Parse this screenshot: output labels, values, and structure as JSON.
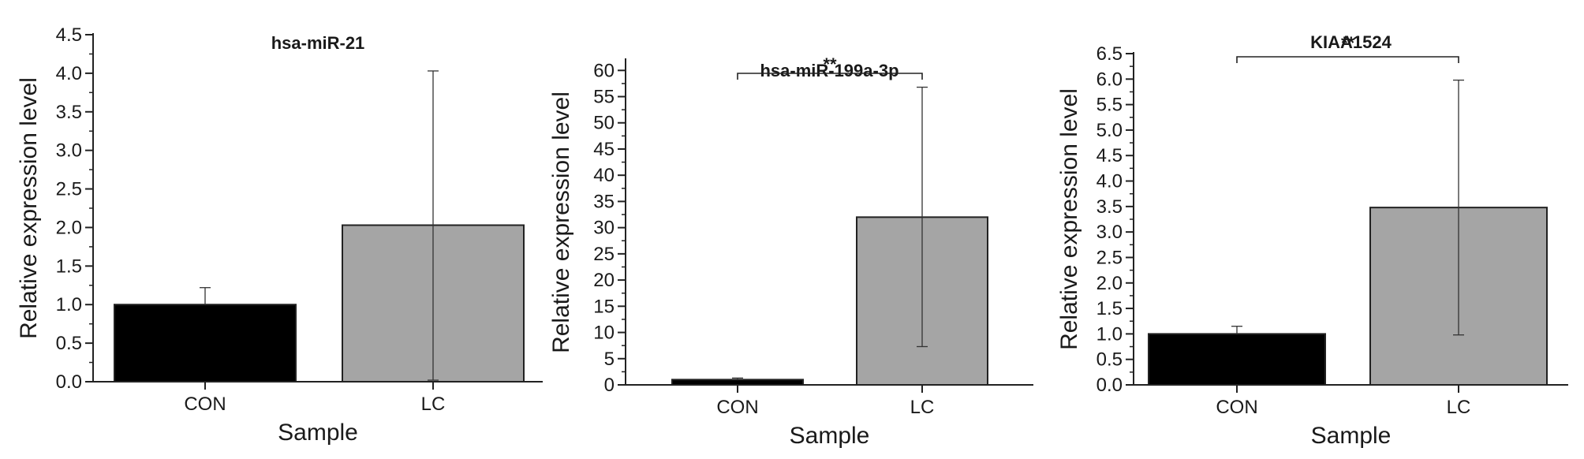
{
  "chart_data": [
    {
      "type": "bar",
      "title": "hsa-miR-21",
      "xlabel": "Sample",
      "ylabel": "Relative expression level",
      "categories": [
        "CON",
        "LC"
      ],
      "values": [
        1.0,
        2.03
      ],
      "error_upper": [
        1.22,
        4.03
      ],
      "error_lower": [
        1.0,
        0.02
      ],
      "bar_colors": [
        "#000000",
        "#a5a5a5"
      ],
      "ylim": [
        0,
        4.5
      ],
      "yticks": [
        "0.0",
        "0.5",
        "1.0",
        "1.5",
        "2.0",
        "2.5",
        "3.0",
        "3.5",
        "4.0",
        "4.5"
      ],
      "significance": null
    },
    {
      "type": "bar",
      "title": "hsa-miR-199a-3p",
      "xlabel": "Sample",
      "ylabel": "Relative expression level",
      "categories": [
        "CON",
        "LC"
      ],
      "values": [
        1.0,
        32.0
      ],
      "error_upper": [
        1.3,
        56.8
      ],
      "error_lower": [
        1.0,
        7.3
      ],
      "bar_colors": [
        "#000000",
        "#a5a5a5"
      ],
      "ylim": [
        0,
        62
      ],
      "yticks": [
        "0",
        "5",
        "10",
        "15",
        "20",
        "25",
        "30",
        "35",
        "40",
        "45",
        "50",
        "55",
        "60"
      ],
      "significance": "**"
    },
    {
      "type": "bar",
      "title": "KIAA1524",
      "xlabel": "Sample",
      "ylabel": "Relative expression level",
      "categories": [
        "CON",
        "LC"
      ],
      "values": [
        1.0,
        3.48
      ],
      "error_upper": [
        1.15,
        5.98
      ],
      "error_lower": [
        1.0,
        0.98
      ],
      "bar_colors": [
        "#000000",
        "#a5a5a5"
      ],
      "ylim": [
        0,
        6.5
      ],
      "yticks": [
        "0.0",
        "0.5",
        "1.0",
        "1.5",
        "2.0",
        "2.5",
        "3.0",
        "3.5",
        "4.0",
        "4.5",
        "5.0",
        "5.5",
        "6.0",
        "6.5"
      ],
      "significance": "**"
    }
  ]
}
